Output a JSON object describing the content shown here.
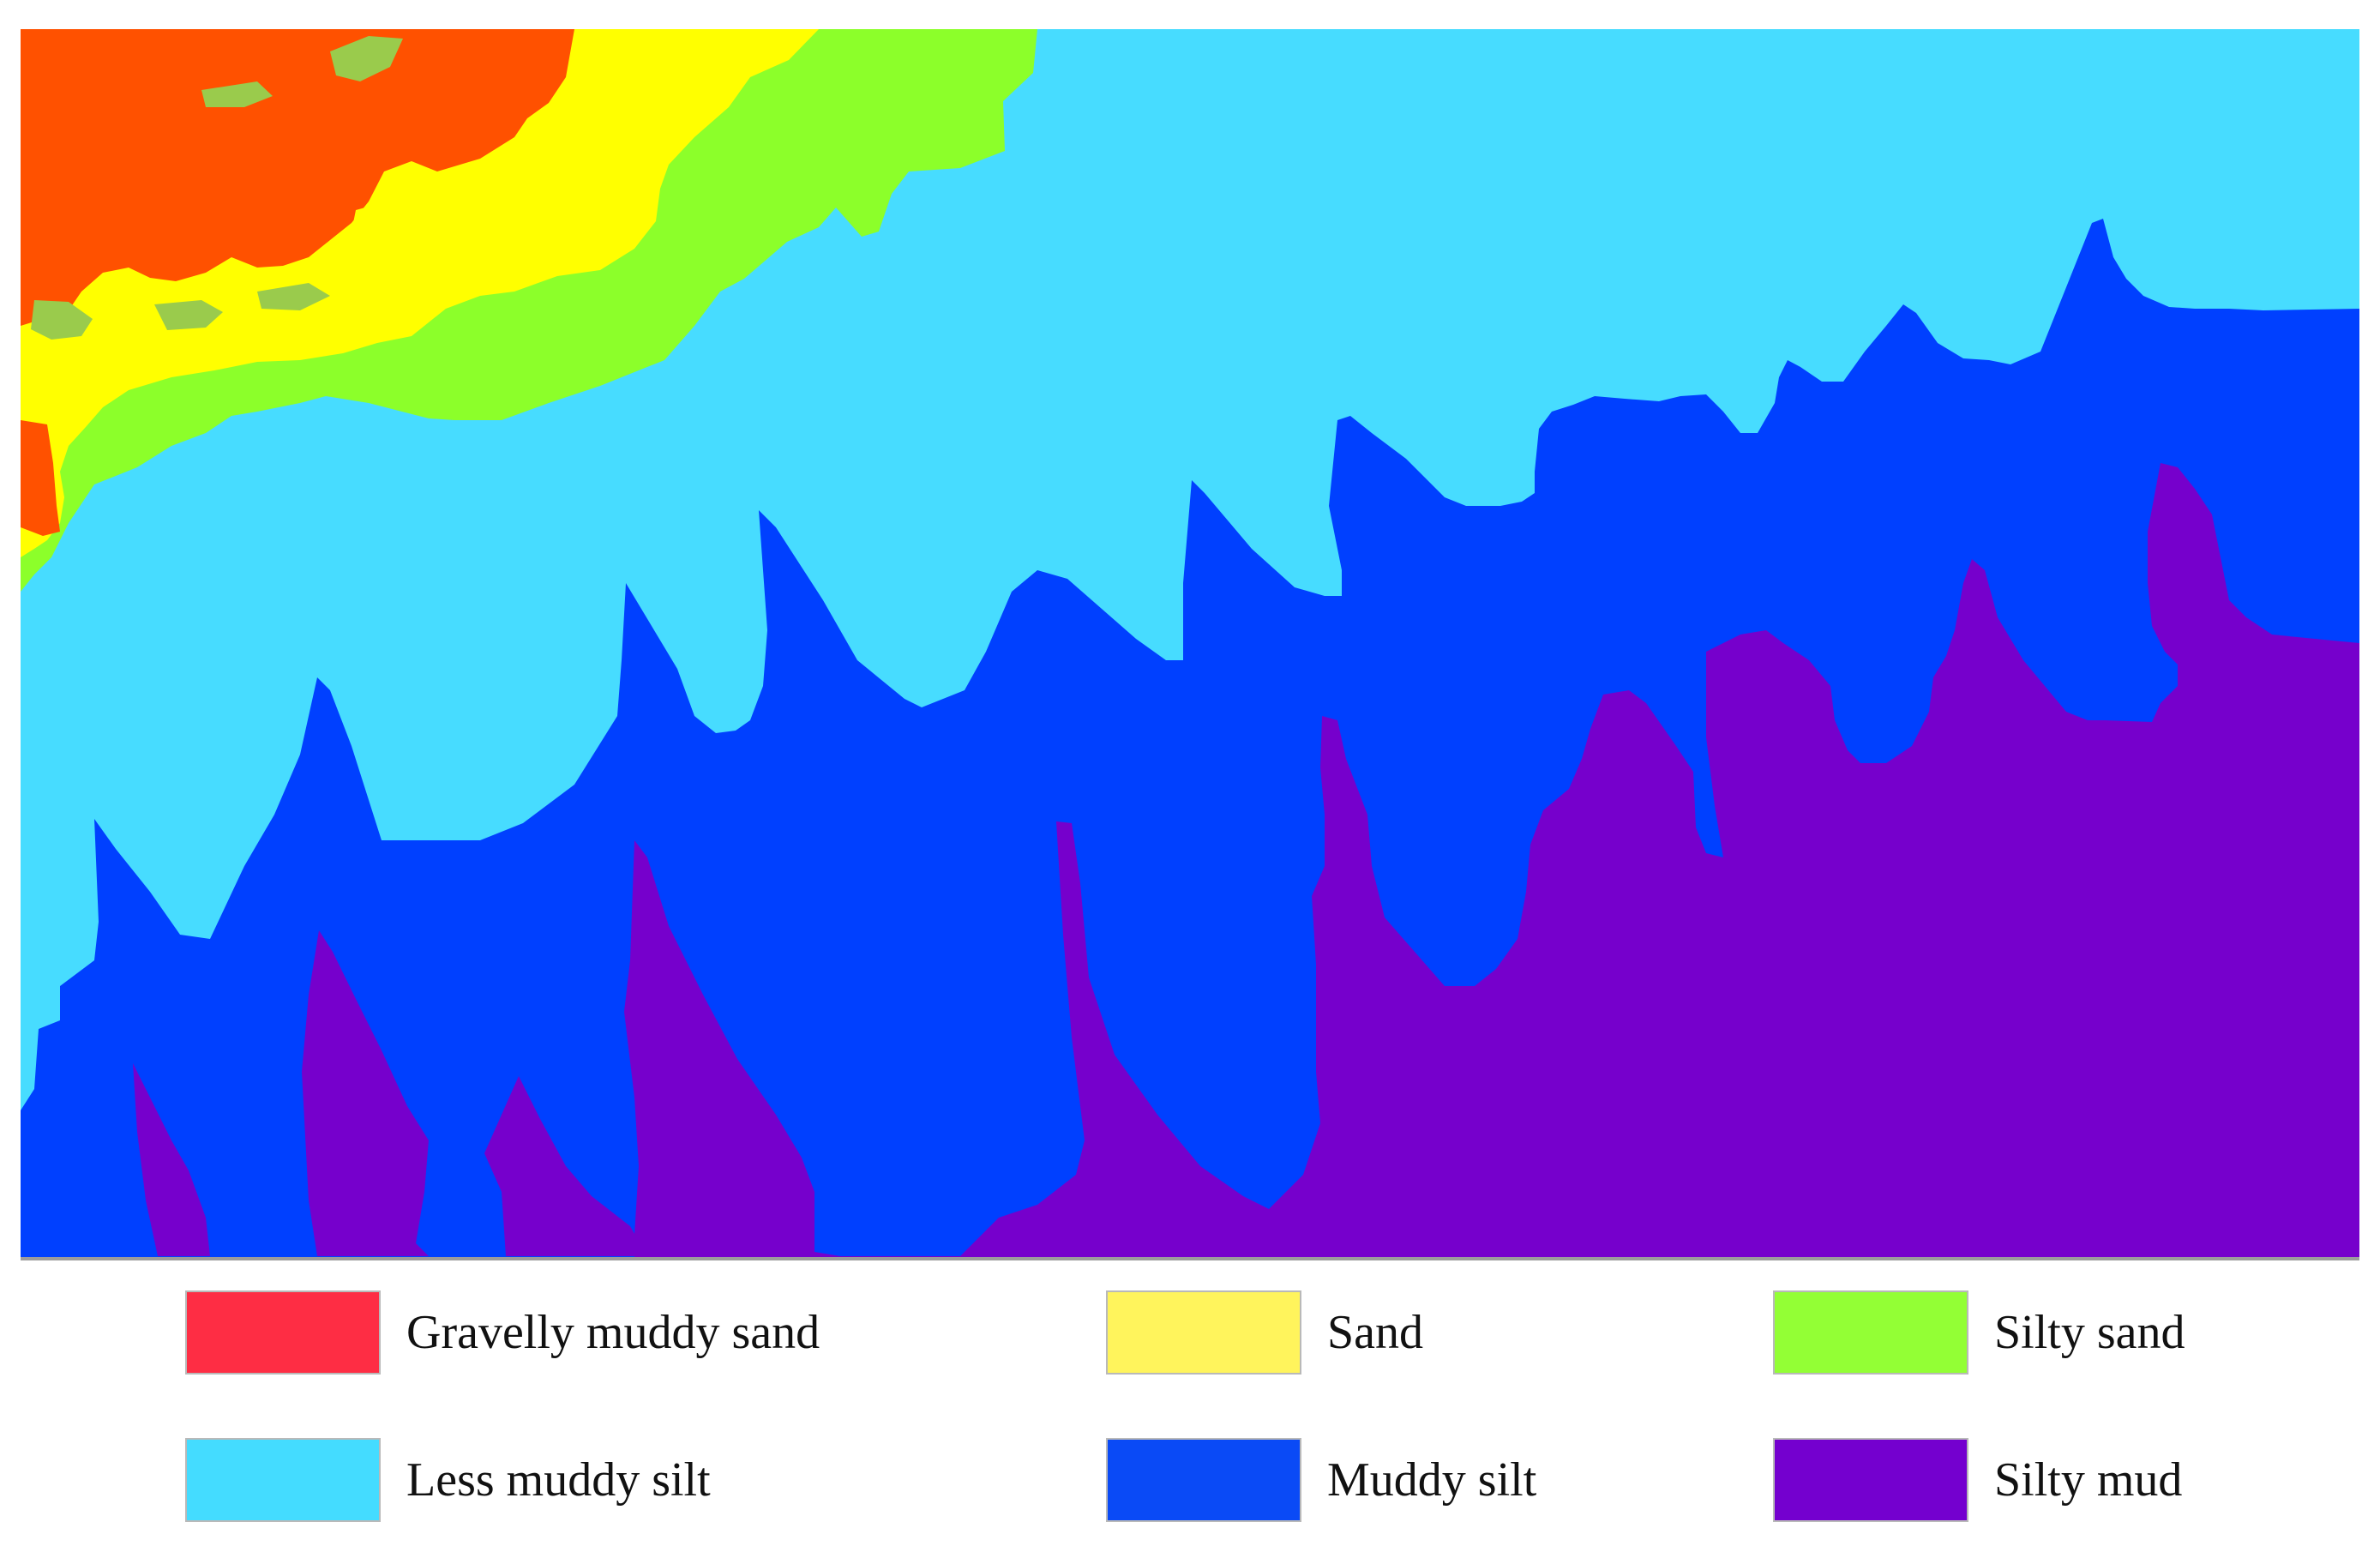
{
  "map": {
    "units": [
      {
        "key": "gravelly_muddy_sand",
        "color": "#ff5100"
      },
      {
        "key": "gravel_pocket",
        "color": "#9acb4c"
      },
      {
        "key": "sand",
        "color": "#ffff00"
      },
      {
        "key": "silty_sand",
        "color": "#8cff2a"
      },
      {
        "key": "less_muddy_silt",
        "color": "#47dcff"
      },
      {
        "key": "muddy_silt",
        "color": "#0040ff"
      },
      {
        "key": "silty_mud",
        "color": "#7600cc"
      }
    ]
  },
  "legend": {
    "items": [
      {
        "label": "Gravelly muddy sand",
        "color": "#fe2d44"
      },
      {
        "label": "Sand",
        "color": "#fff45c"
      },
      {
        "label": "Silty sand",
        "color": "#93ff35"
      },
      {
        "label": "Less muddy silt",
        "color": "#44dcff"
      },
      {
        "label": "Muddy silt",
        "color": "#0a4af6"
      },
      {
        "label": "Silty mud",
        "color": "#7400cf"
      }
    ]
  }
}
